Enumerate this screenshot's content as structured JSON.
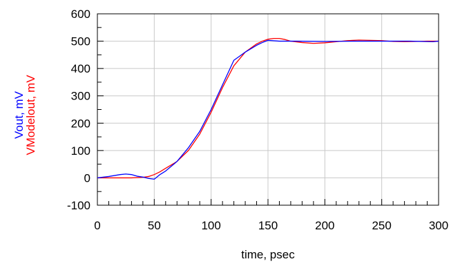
{
  "chart_data": {
    "type": "line",
    "xlabel": "time, psec",
    "ylabel_lines": [
      {
        "text": "Vout, mV",
        "color": "#0000ff"
      },
      {
        "text": "VModelout, mV",
        "color": "#ff0000"
      }
    ],
    "xlim": [
      0,
      300
    ],
    "ylim": [
      -100,
      600
    ],
    "x_ticks": [
      0,
      50,
      100,
      150,
      200,
      250,
      300
    ],
    "y_ticks": [
      -100,
      0,
      100,
      200,
      300,
      400,
      500,
      600
    ],
    "x_minor_step": 10,
    "y_minor_step": 50,
    "grid": true,
    "series": [
      {
        "name": "Vout",
        "color": "#0000ff",
        "x": [
          0,
          10,
          20,
          25,
          30,
          35,
          40,
          45,
          50,
          55,
          60,
          70,
          80,
          90,
          100,
          110,
          120,
          125,
          130,
          140,
          145,
          150,
          160,
          175,
          200,
          225,
          250,
          275,
          295,
          300
        ],
        "y": [
          0,
          5,
          12,
          14,
          12,
          6,
          3,
          -2,
          -5,
          12,
          25,
          60,
          110,
          170,
          250,
          340,
          430,
          445,
          460,
          485,
          495,
          503,
          500,
          500,
          499,
          500,
          500,
          500,
          498,
          500
        ]
      },
      {
        "name": "VModelout",
        "color": "#ff0000",
        "x": [
          0,
          10,
          20,
          30,
          40,
          45,
          50,
          55,
          60,
          70,
          80,
          90,
          100,
          110,
          120,
          130,
          140,
          145,
          150,
          155,
          160,
          165,
          170,
          180,
          190,
          200,
          210,
          220,
          230,
          240,
          250,
          260,
          270,
          280,
          290,
          300
        ],
        "y": [
          0,
          0,
          0,
          0,
          2,
          5,
          12,
          22,
          35,
          60,
          100,
          160,
          240,
          330,
          410,
          460,
          490,
          500,
          507,
          510,
          510,
          506,
          500,
          495,
          492,
          494,
          498,
          502,
          504,
          503,
          502,
          499,
          498,
          499,
          500,
          500
        ]
      }
    ]
  }
}
